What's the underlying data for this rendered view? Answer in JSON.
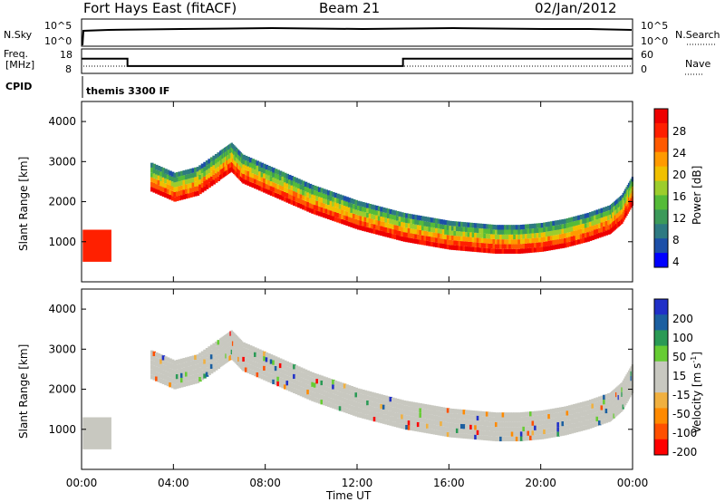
{
  "header": {
    "station": "Fort Hays East (fitACF)",
    "beam": "Beam 21",
    "date": "02/Jan/2012"
  },
  "top_panels": {
    "nsky_label": "N.Sky",
    "nsearch_label": "N.Search",
    "noise_ticks": [
      "10^5",
      "10^0"
    ],
    "freq_label_1": "Freq.",
    "freq_label_2": "[MHz]",
    "freq_ticks": [
      "18",
      "8"
    ],
    "nave_label": "Nave",
    "nave_ticks": [
      "60",
      "0"
    ],
    "cpid_label": "CPID",
    "cpid_value": "themis 3300 IF"
  },
  "axes": {
    "ylabel": "Slant Range [km]",
    "xlabel": "Time UT",
    "yticks": [
      "4000",
      "3000",
      "2000",
      "1000"
    ],
    "xticks": [
      "00:00",
      "04:00",
      "08:00",
      "12:00",
      "16:00",
      "20:00",
      "00:00"
    ]
  },
  "colorbars": {
    "power_label": "Power [dB]",
    "power_ticks": [
      "28",
      "24",
      "20",
      "16",
      "12",
      "8",
      "4"
    ],
    "velocity_label": "Velocity [m s",
    "velocity_label_sup": "-1",
    "velocity_label_end": "]",
    "velocity_ticks": [
      "200",
      "100",
      "50",
      "15",
      "-15",
      "-50",
      "-100",
      "-200"
    ],
    "power_colors": [
      "#0000ff",
      "#1c4fa8",
      "#2e7a82",
      "#3c9a5a",
      "#55bb38",
      "#9ccd2c",
      "#f0c000",
      "#ff9a00",
      "#ff5a00",
      "#ff2000",
      "#ee0000"
    ],
    "velocity_colors": [
      "#ff0000",
      "#ff5000",
      "#ff8a00",
      "#f0b040",
      "#c8c8c0",
      "#c8c8c0",
      "#66cc33",
      "#2a9a55",
      "#1b5fa0",
      "#2030c8"
    ]
  },
  "chart_data": {
    "type": "heatmap",
    "xlim": [
      0,
      24
    ],
    "ylim": [
      0,
      4500
    ],
    "grid": false,
    "x_hours": [
      0,
      0.5,
      1,
      1.5,
      2,
      3,
      4,
      5,
      6,
      6.5,
      7,
      8,
      9,
      10,
      11,
      12,
      13,
      14,
      15,
      16,
      17,
      18,
      19,
      20,
      21,
      22,
      23,
      23.5,
      24
    ],
    "echo_band_center_km": [
      null,
      null,
      null,
      null,
      null,
      2600,
      2350,
      2500,
      2900,
      3100,
      2800,
      2550,
      2300,
      2050,
      1850,
      1650,
      1500,
      1350,
      1250,
      1150,
      1100,
      1050,
      1050,
      1100,
      1200,
      1350,
      1550,
      1800,
      2300
    ],
    "noise_sky_log": 5,
    "frequency_mhz_steps": [
      {
        "from": 0,
        "to": 2,
        "value": 14
      },
      {
        "from": 2,
        "to": 14,
        "value": 11
      },
      {
        "from": 14,
        "to": 24,
        "value": 14
      }
    ],
    "nave_level": 25
  }
}
